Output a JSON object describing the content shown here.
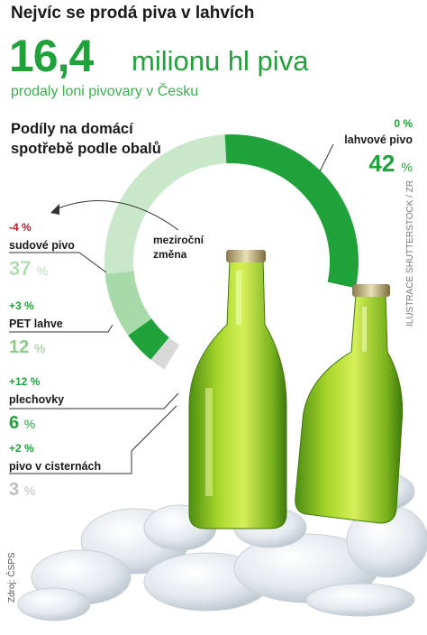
{
  "headline": "Nejvíc se prodá piva v lahvích",
  "big_number": "16,4",
  "big_unit": "milionu hl piva",
  "subheadline": "prodaly loni pivovary v Česku",
  "credit": "ILUSTRACE SHUTTERSTOCK / ZR",
  "source": "Zdroj: ČSPS",
  "chart_data": {
    "type": "pie",
    "title": "Podíly na domácí spotřebě podle obalů",
    "change_label": "meziroční změna",
    "unit": "%",
    "segments": [
      {
        "name": "lahvové pivo",
        "value": 42,
        "change": "0 %",
        "color": "#1fa23a",
        "change_color": "#1fa23a",
        "pct_color": "#1fa23a"
      },
      {
        "name": "sudové pivo",
        "value": 37,
        "change": "-4 %",
        "color": "#c9e8c9",
        "change_color": "#c0162a",
        "pct_color": "#b5dcb5"
      },
      {
        "name": "PET lahve",
        "value": 12,
        "change": "+3 %",
        "color": "#a8d9a8",
        "change_color": "#1fa23a",
        "pct_color": "#8ecb8e"
      },
      {
        "name": "plechovky",
        "value": 6,
        "change": "+12 %",
        "color": "#1fa23a",
        "change_color": "#1fa23a",
        "pct_color": "#1fa23a"
      },
      {
        "name": "pivo v cisternách",
        "value": 3,
        "change": "+2 %",
        "color": "#d9d9d9",
        "change_color": "#1fa23a",
        "pct_color": "#bdbdbd"
      }
    ]
  }
}
